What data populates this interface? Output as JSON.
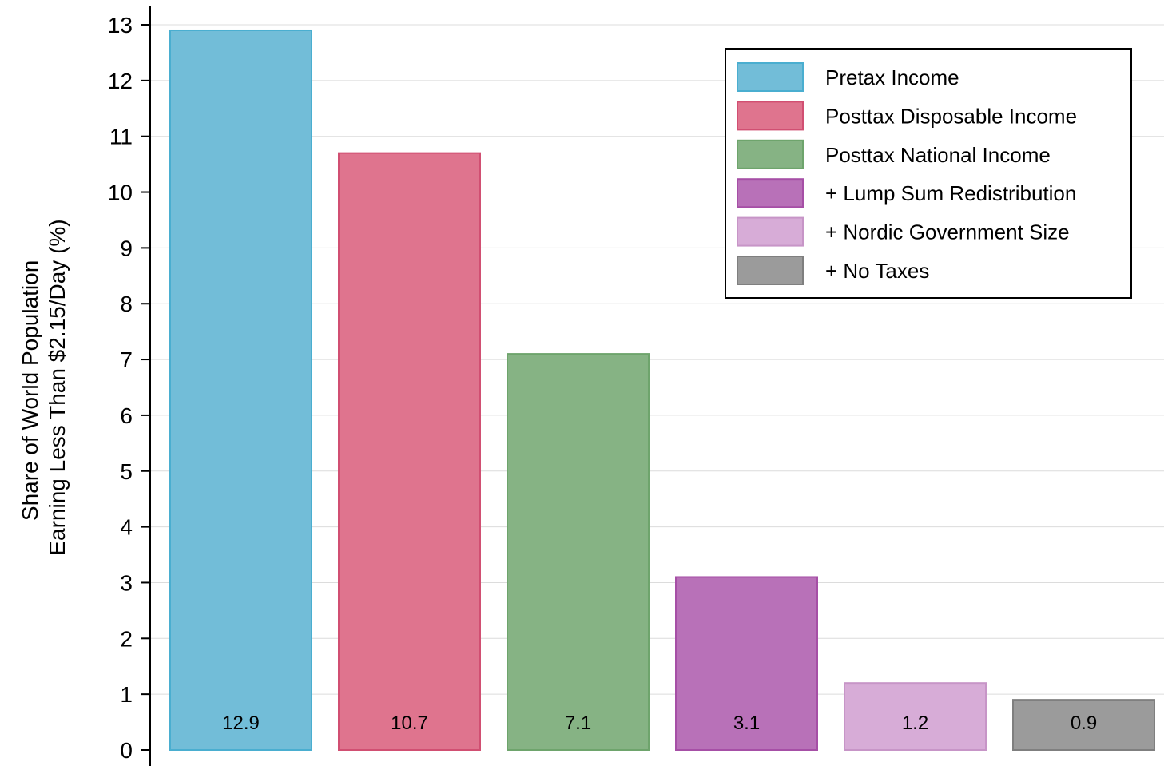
{
  "chart_data": {
    "type": "bar",
    "title": "",
    "xlabel": "",
    "ylabel_lines": [
      "Share of World Population",
      "Earning Less Than $2.15/Day (%)"
    ],
    "ylim": [
      0,
      13
    ],
    "yticks": [
      0,
      1,
      2,
      3,
      4,
      5,
      6,
      7,
      8,
      9,
      10,
      11,
      12,
      13
    ],
    "grid": true,
    "legend_position": "top-right",
    "series": [
      {
        "name": "Pretax Income",
        "value": 12.9,
        "label": "12.9",
        "fill": "#72bdd8",
        "stroke": "#4aaed0"
      },
      {
        "name": "Posttax Disposable Income",
        "value": 10.7,
        "label": "10.7",
        "fill": "#df748e",
        "stroke": "#d14f72"
      },
      {
        "name": "Posttax National Income",
        "value": 7.1,
        "label": "7.1",
        "fill": "#86b384",
        "stroke": "#6ea46c"
      },
      {
        "name": "+ Lump Sum Redistribution",
        "value": 3.1,
        "label": "3.1",
        "fill": "#b871b8",
        "stroke": "#a64fa6"
      },
      {
        "name": "+ Nordic Government Size",
        "value": 1.2,
        "label": "1.2",
        "fill": "#d7acd7",
        "stroke": "#c795c7"
      },
      {
        "name": "+ No Taxes",
        "value": 0.9,
        "label": "0.9",
        "fill": "#9b9b9b",
        "stroke": "#7f7f7f"
      }
    ]
  }
}
